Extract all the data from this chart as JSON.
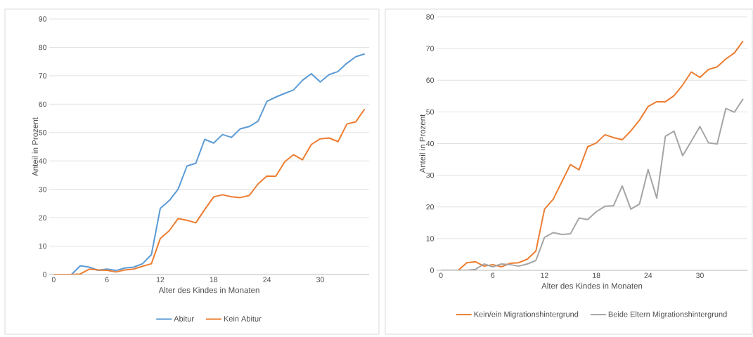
{
  "chart_data": [
    {
      "type": "line",
      "xlabel": "Alter des Kindes in Monaten",
      "ylabel": "Anteil in Prozent",
      "x": [
        0,
        1,
        2,
        3,
        4,
        5,
        6,
        7,
        8,
        9,
        10,
        11,
        12,
        13,
        14,
        15,
        16,
        17,
        18,
        19,
        20,
        21,
        22,
        23,
        24,
        25,
        26,
        27,
        28,
        29,
        30,
        31,
        32,
        33,
        34,
        35
      ],
      "series": [
        {
          "name": "Abitur",
          "color": "#5b9bd5",
          "values": [
            0,
            0,
            0,
            3.1,
            2.6,
            1.5,
            1.9,
            1.4,
            2.3,
            2.6,
            3.8,
            7.0,
            23.3,
            26,
            30,
            38.2,
            39.2,
            47.6,
            46.3,
            49.3,
            48.3,
            51.3,
            52.1,
            54,
            61,
            62.5,
            63.8,
            65,
            68.4,
            70.7,
            67.8,
            70.4,
            71.5,
            74.4,
            76.7,
            77.7
          ]
        },
        {
          "name": "Kein Abitur",
          "color": "#ed7d31",
          "values": [
            0,
            0,
            0,
            0.2,
            1.9,
            1.6,
            1.5,
            0.9,
            1.6,
            1.9,
            2.9,
            3.8,
            12.7,
            15.4,
            19.7,
            19.1,
            18.2,
            22.9,
            27.3,
            28.1,
            27.4,
            27.1,
            27.8,
            31.9,
            34.7,
            34.6,
            39.7,
            42.2,
            40.4,
            45.8,
            47.8,
            48.1,
            46.8,
            53,
            53.8,
            58.3
          ]
        }
      ],
      "xlim": [
        -0.5,
        35.5
      ],
      "ylim": [
        0,
        90
      ],
      "xticks": [
        0,
        6,
        12,
        18,
        24,
        30
      ],
      "yticks": [
        0,
        10,
        20,
        30,
        40,
        50,
        60,
        70,
        80,
        90
      ],
      "grid": "y",
      "legend": "bottom"
    },
    {
      "type": "line",
      "xlabel": "Alter des Kindes in Monaten",
      "ylabel": "Anteil in Prozent",
      "x": [
        0,
        1,
        2,
        3,
        4,
        5,
        6,
        7,
        8,
        9,
        10,
        11,
        12,
        13,
        14,
        15,
        16,
        17,
        18,
        19,
        20,
        21,
        22,
        23,
        24,
        25,
        26,
        27,
        28,
        29,
        30,
        31,
        32,
        33,
        34,
        35
      ],
      "series": [
        {
          "name": "Kein/ein Migrationshintergrund",
          "color": "#ed7d31",
          "values": [
            0,
            0,
            0,
            2.4,
            2.7,
            1.3,
            1.8,
            1.1,
            2.2,
            2.4,
            3.5,
            6.1,
            19.3,
            22.4,
            27.9,
            33.4,
            31.7,
            39,
            40.2,
            42.8,
            41.9,
            41.2,
            44,
            47.4,
            51.7,
            53.2,
            53.2,
            55.1,
            58.5,
            62.6,
            60.9,
            63.4,
            64.2,
            66.7,
            68.6,
            72.4
          ]
        },
        {
          "name": "Beide Eltern Migrationshintergrund",
          "color": "#a5a5a5",
          "values": [
            0,
            0,
            0,
            0,
            0.3,
            2.0,
            1.1,
            2.0,
            1.8,
            1.3,
            2.0,
            3.1,
            10.4,
            11.9,
            11.3,
            11.5,
            16.5,
            16.0,
            18.5,
            20.2,
            20.4,
            26.6,
            19.3,
            20.9,
            31.8,
            22.8,
            42.3,
            43.9,
            36.2,
            40.7,
            45.4,
            40.2,
            39.9,
            51.1,
            49.9,
            54.1
          ]
        }
      ],
      "xlim": [
        -0.5,
        35.5
      ],
      "ylim": [
        0,
        80
      ],
      "xticks": [
        0,
        6,
        12,
        18,
        24,
        30
      ],
      "yticks": [
        0,
        10,
        20,
        30,
        40,
        50,
        60,
        70,
        80
      ],
      "grid": "y",
      "legend": "bottom"
    }
  ]
}
